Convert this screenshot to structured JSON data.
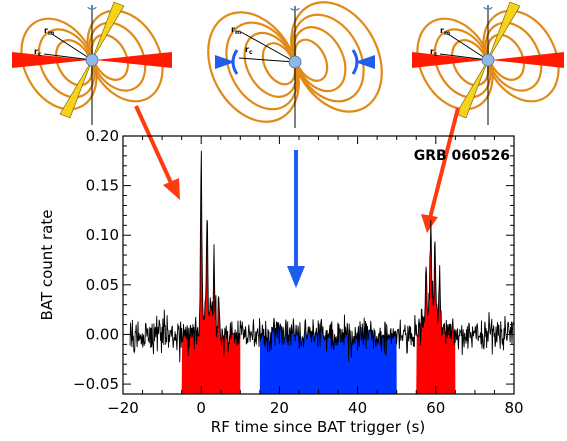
{
  "colors": {
    "flare_fill": "#ff0000",
    "quiescent_fill": "#0033ff",
    "curve": "#000000",
    "loops": "#e08a18",
    "arrow_red": "#ff3a10",
    "arrow_blue": "#1f5eea",
    "jet_yellow": "#f6d21a",
    "core": "#8fb8e6"
  },
  "figure_labels": {
    "grb": "GRB 060526",
    "r_m": "r",
    "r_m_sub": "m",
    "r_c": "r",
    "r_c_sub": "c"
  },
  "chart_data": {
    "type": "line",
    "title": "",
    "xlabel": "RF time since BAT trigger (s)",
    "ylabel": "BAT count rate",
    "xlim": [
      -20,
      80
    ],
    "ylim": [
      -0.06,
      0.2
    ],
    "xticks": [
      -20,
      0,
      20,
      40,
      60,
      80
    ],
    "xtick_labels": [
      "−20",
      "0",
      "20",
      "40",
      "60",
      "80"
    ],
    "yticks": [
      -0.05,
      0.0,
      0.05,
      0.1,
      0.15,
      0.2
    ],
    "ytick_labels": [
      "−0.05",
      "0.00",
      "0.05",
      "0.10",
      "0.15",
      "0.20"
    ],
    "grid": false,
    "annotation": "GRB 060526",
    "baseline_noise_sigma": 0.009,
    "peaks": [
      {
        "t": 0.0,
        "height": 0.17
      },
      {
        "t": 1.5,
        "height": 0.095
      },
      {
        "t": 3.3,
        "height": 0.07
      },
      {
        "t": 4.5,
        "height": 0.04
      },
      {
        "t": 58.7,
        "height": 0.085
      },
      {
        "t": 59.8,
        "height": 0.065
      },
      {
        "t": 57.5,
        "height": 0.05
      },
      {
        "t": 61.0,
        "height": 0.04
      }
    ],
    "shaded_regions": [
      {
        "name": "flare",
        "color": "#ff0000",
        "x_start": -5,
        "x_end": 10
      },
      {
        "name": "quiescent",
        "color": "#0033ff",
        "x_start": 15,
        "x_end": 50
      },
      {
        "name": "flare",
        "color": "#ff0000",
        "x_start": 55,
        "x_end": 65
      }
    ]
  }
}
